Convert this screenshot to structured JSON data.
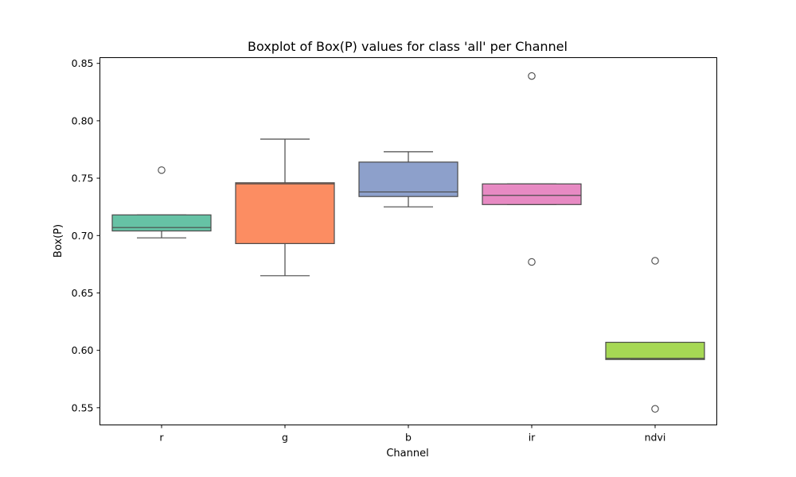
{
  "chart_data": {
    "type": "box",
    "title": "Boxplot of Box(P) values for class 'all' per Channel",
    "xlabel": "Channel",
    "ylabel": "Box(P)",
    "ylim": [
      0.535,
      0.855
    ],
    "yticks": [
      "0.55",
      "0.60",
      "0.65",
      "0.70",
      "0.75",
      "0.80",
      "0.85"
    ],
    "grid": false,
    "categories": [
      "r",
      "g",
      "b",
      "ir",
      "ndvi"
    ],
    "boxes": [
      {
        "category": "r",
        "whisker_low": 0.698,
        "q1": 0.704,
        "median": 0.707,
        "q3": 0.718,
        "whisker_high": 0.718,
        "outliers": [
          0.757
        ],
        "color": "#66c2a5"
      },
      {
        "category": "g",
        "whisker_low": 0.665,
        "q1": 0.693,
        "median": 0.745,
        "q3": 0.746,
        "whisker_high": 0.784,
        "outliers": [],
        "color": "#fc8d62"
      },
      {
        "category": "b",
        "whisker_low": 0.725,
        "q1": 0.734,
        "median": 0.738,
        "q3": 0.764,
        "whisker_high": 0.773,
        "outliers": [],
        "color": "#8da0cb"
      },
      {
        "category": "ir",
        "whisker_low": 0.727,
        "q1": 0.727,
        "median": 0.735,
        "q3": 0.745,
        "whisker_high": 0.745,
        "outliers": [
          0.839,
          0.677
        ],
        "color": "#e78ac3"
      },
      {
        "category": "ndvi",
        "whisker_low": 0.592,
        "q1": 0.592,
        "median": 0.593,
        "q3": 0.607,
        "whisker_high": 0.607,
        "outliers": [
          0.678,
          0.549
        ],
        "color": "#a6d854"
      }
    ]
  }
}
